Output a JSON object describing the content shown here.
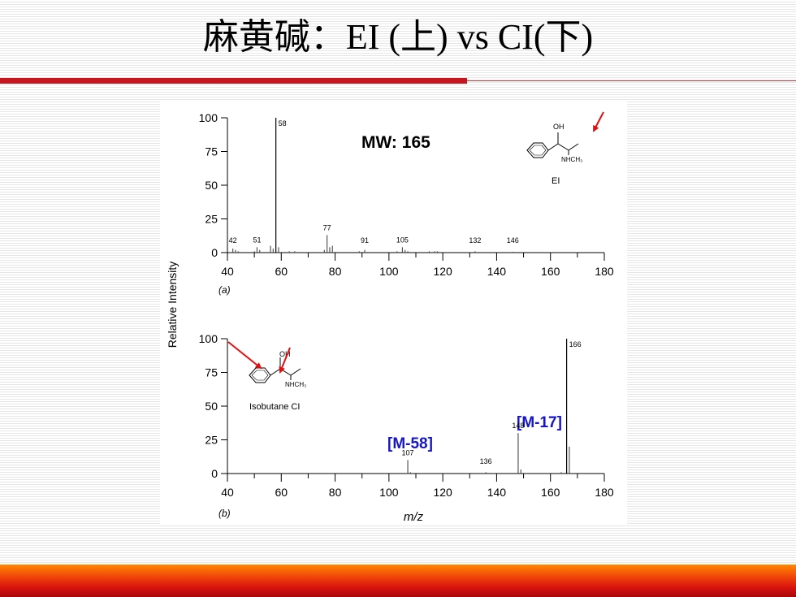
{
  "slide": {
    "title": "麻黄碱：EI (上) vs CI(下)",
    "accent_color": "#c8141e"
  },
  "chart_data": [
    {
      "type": "bar",
      "subplot_label": "(a)",
      "ylabel": "Relative Intensity",
      "xlim": [
        40,
        180
      ],
      "ylim": [
        0,
        100
      ],
      "xticks": [
        40,
        60,
        80,
        100,
        120,
        140,
        160,
        180
      ],
      "yticks": [
        0,
        25,
        50,
        75,
        100
      ],
      "annotation_mw": "MW: 165",
      "structure_label": "EI",
      "structure_groups": [
        "OH",
        "NHCH₃"
      ],
      "peaks": [
        {
          "mz": 42,
          "intensity": 3,
          "label": "42"
        },
        {
          "mz": 43,
          "intensity": 2
        },
        {
          "mz": 44,
          "intensity": 1
        },
        {
          "mz": 50,
          "intensity": 1
        },
        {
          "mz": 51,
          "intensity": 4,
          "label": "51"
        },
        {
          "mz": 52,
          "intensity": 2
        },
        {
          "mz": 56,
          "intensity": 5
        },
        {
          "mz": 57,
          "intensity": 3
        },
        {
          "mz": 58,
          "intensity": 100,
          "label": "58"
        },
        {
          "mz": 59,
          "intensity": 4
        },
        {
          "mz": 63,
          "intensity": 1
        },
        {
          "mz": 65,
          "intensity": 1
        },
        {
          "mz": 76,
          "intensity": 2
        },
        {
          "mz": 77,
          "intensity": 13,
          "label": "77"
        },
        {
          "mz": 78,
          "intensity": 4
        },
        {
          "mz": 79,
          "intensity": 5
        },
        {
          "mz": 89,
          "intensity": 1
        },
        {
          "mz": 91,
          "intensity": 2,
          "label": "91"
        },
        {
          "mz": 103,
          "intensity": 1
        },
        {
          "mz": 105,
          "intensity": 4,
          "label": "105"
        },
        {
          "mz": 106,
          "intensity": 2
        },
        {
          "mz": 107,
          "intensity": 1
        },
        {
          "mz": 115,
          "intensity": 1
        },
        {
          "mz": 117,
          "intensity": 1
        },
        {
          "mz": 118,
          "intensity": 1
        },
        {
          "mz": 132,
          "intensity": 1,
          "label": "132"
        },
        {
          "mz": 146,
          "intensity": 0.5,
          "label": "146"
        }
      ]
    },
    {
      "type": "bar",
      "subplot_label": "(b)",
      "xlabel": "m/z",
      "xlim": [
        40,
        180
      ],
      "ylim": [
        0,
        100
      ],
      "xticks": [
        40,
        60,
        80,
        100,
        120,
        140,
        160,
        180
      ],
      "yticks": [
        0,
        25,
        50,
        75,
        100
      ],
      "structure_label": "Isobutane CI",
      "structure_groups": [
        "OH",
        "NHCH₃"
      ],
      "annotations": [
        "[M-58]",
        "[M-17]"
      ],
      "annotation_color": "#1515cc",
      "arrow_color": "#e01010",
      "peaks": [
        {
          "mz": 107,
          "intensity": 10,
          "label": "107"
        },
        {
          "mz": 108,
          "intensity": 1
        },
        {
          "mz": 136,
          "intensity": 1,
          "label": "136"
        },
        {
          "mz": 148,
          "intensity": 30,
          "label": "148"
        },
        {
          "mz": 149,
          "intensity": 3
        },
        {
          "mz": 164,
          "intensity": 1
        },
        {
          "mz": 166,
          "intensity": 100,
          "label": "166"
        },
        {
          "mz": 167,
          "intensity": 20
        }
      ]
    }
  ]
}
